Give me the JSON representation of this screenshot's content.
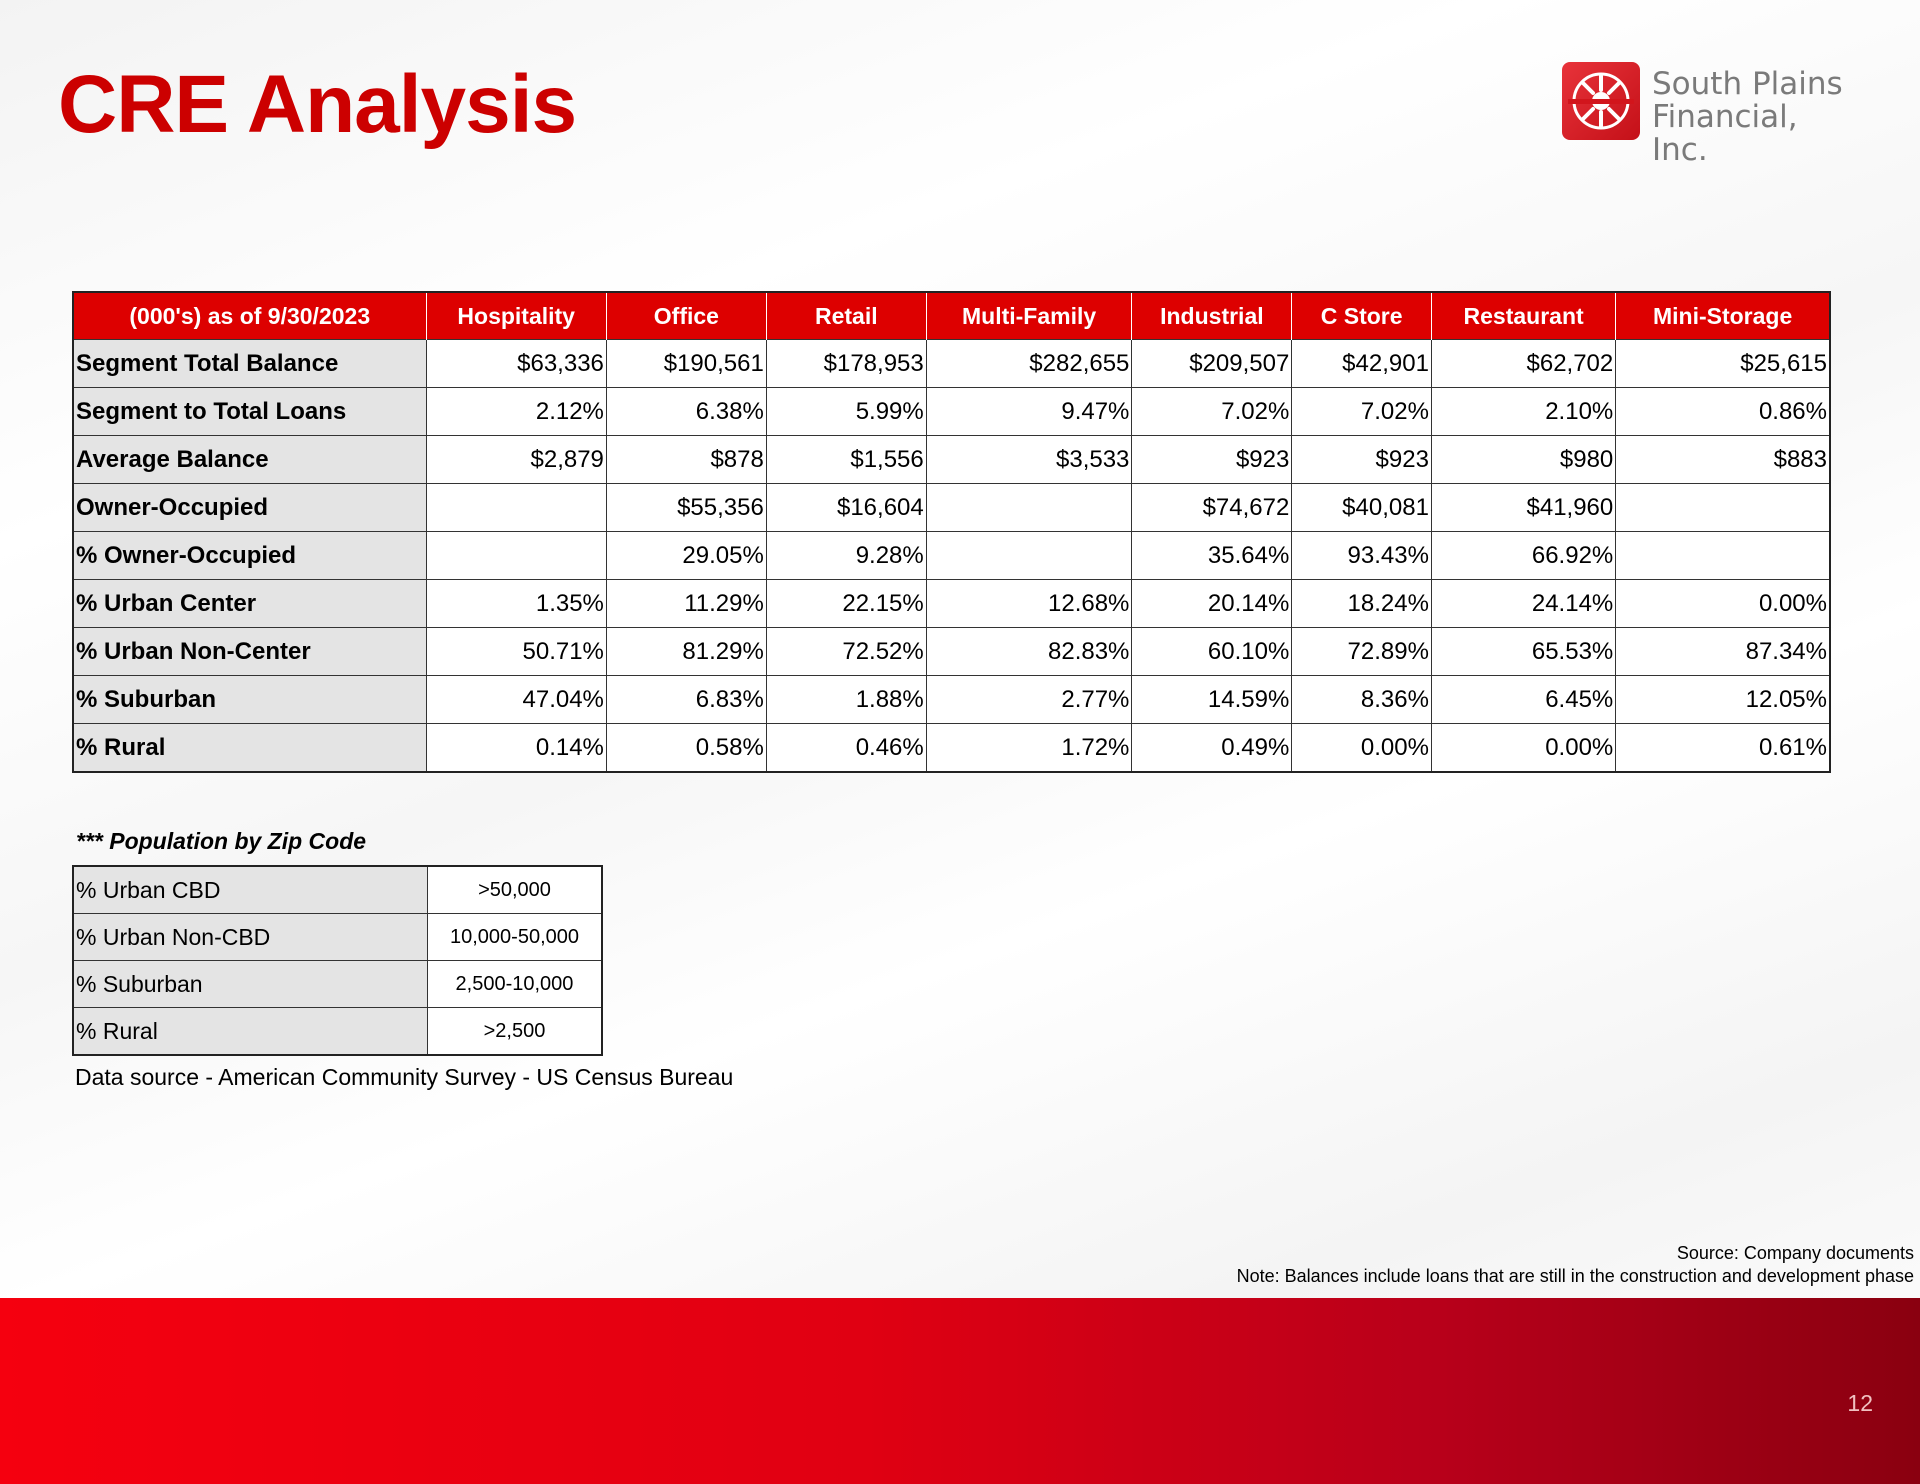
{
  "header": {
    "title": "CRE Analysis",
    "logo_line1": "South Plains",
    "logo_line2": "Financial, Inc."
  },
  "main_table": {
    "headers": [
      "(000's) as of 9/30/2023",
      "Hospitality",
      "Office",
      "Retail",
      "Multi-Family",
      "Industrial",
      "C Store",
      "Restaurant",
      "Mini-Storage"
    ],
    "rows": [
      {
        "label": "Segment Total Balance",
        "values": [
          "$63,336",
          "$190,561",
          "$178,953",
          "$282,655",
          "$209,507",
          "$42,901",
          "$62,702",
          "$25,615"
        ]
      },
      {
        "label": "Segment to Total Loans",
        "values": [
          "2.12%",
          "6.38%",
          "5.99%",
          "9.47%",
          "7.02%",
          "7.02%",
          "2.10%",
          "0.86%"
        ]
      },
      {
        "label": "Average Balance",
        "values": [
          "$2,879",
          "$878",
          "$1,556",
          "$3,533",
          "$923",
          "$923",
          "$980",
          "$883"
        ]
      },
      {
        "label": "Owner-Occupied",
        "values": [
          "",
          "$55,356",
          "$16,604",
          "",
          "$74,672",
          "$40,081",
          "$41,960",
          ""
        ]
      },
      {
        "label": "% Owner-Occupied",
        "values": [
          "",
          "29.05%",
          "9.28%",
          "",
          "35.64%",
          "93.43%",
          "66.92%",
          ""
        ]
      },
      {
        "label": "% Urban Center",
        "values": [
          "1.35%",
          "11.29%",
          "22.15%",
          "12.68%",
          "20.14%",
          "18.24%",
          "24.14%",
          "0.00%"
        ]
      },
      {
        "label": "% Urban Non-Center",
        "values": [
          "50.71%",
          "81.29%",
          "72.52%",
          "82.83%",
          "60.10%",
          "72.89%",
          "65.53%",
          "87.34%"
        ]
      },
      {
        "label": "% Suburban",
        "values": [
          "47.04%",
          "6.83%",
          "1.88%",
          "2.77%",
          "14.59%",
          "8.36%",
          "6.45%",
          "12.05%"
        ]
      },
      {
        "label": "% Rural",
        "values": [
          "0.14%",
          "0.58%",
          "0.46%",
          "1.72%",
          "0.49%",
          "0.00%",
          "0.00%",
          "0.61%"
        ]
      }
    ]
  },
  "population": {
    "title": "*** Population by Zip Code",
    "rows": [
      {
        "label": "% Urban CBD",
        "value": ">50,000"
      },
      {
        "label": "% Urban Non-CBD",
        "value": "10,000-50,000"
      },
      {
        "label": "% Suburban",
        "value": "2,500-10,000"
      },
      {
        "label": "% Rural",
        "value": ">2,500"
      }
    ],
    "data_source": "Data source - American Community Survey - US Census Bureau"
  },
  "footer": {
    "source": "Source: Company documents",
    "note": "Note:  Balances include loans that are still in the construction and development phase",
    "page_number": "12"
  },
  "colors": {
    "title_red": "#cc0000",
    "header_red": "#dd0000",
    "row_label_gray": "#e4e4e4"
  }
}
